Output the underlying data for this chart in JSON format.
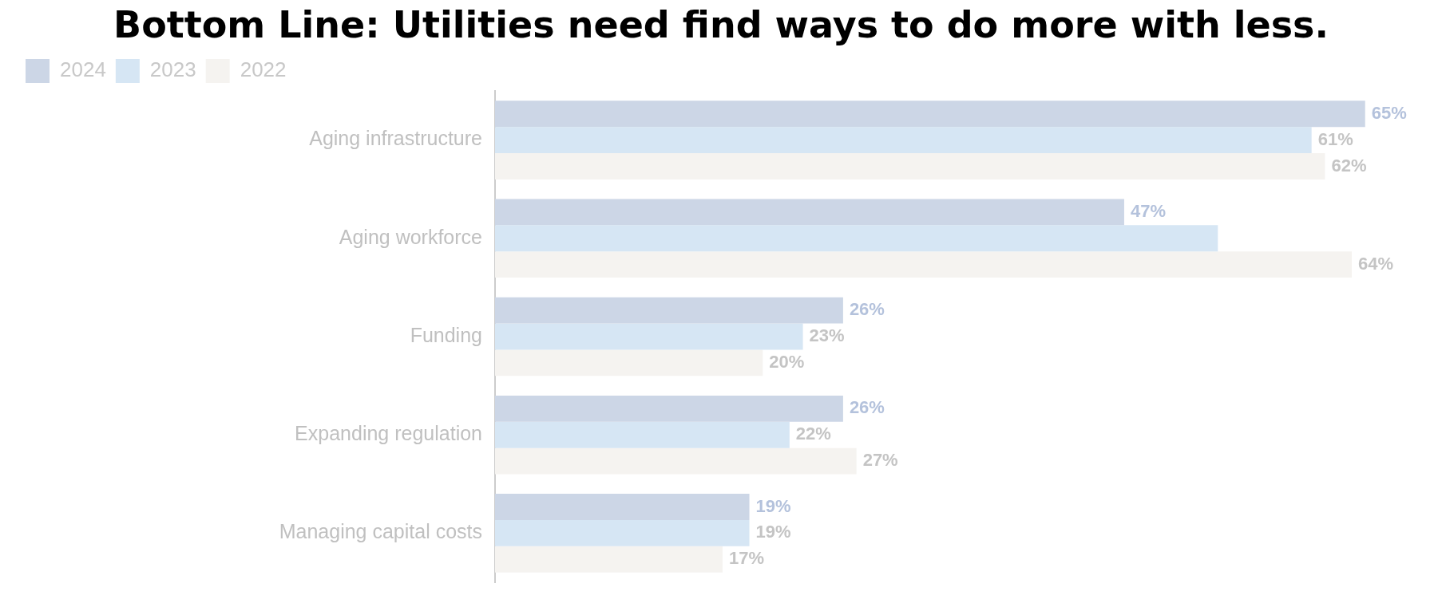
{
  "chart_data": {
    "type": "bar",
    "orientation": "horizontal",
    "title": "Bottom Line: Utilities need find ways to do more with less.",
    "categories": [
      "Aging infrastructure",
      "Aging workforce",
      "Funding",
      "Expanding regulation",
      "Managing capital costs"
    ],
    "series": [
      {
        "name": "2024",
        "color": "#ccd6e6",
        "values": [
          65,
          47,
          26,
          26,
          19
        ],
        "value_labels": [
          "65%",
          "47%",
          "26%",
          "26%",
          "19%"
        ]
      },
      {
        "name": "2023",
        "color": "#d6e6f4",
        "values": [
          61,
          54,
          23,
          22,
          19
        ],
        "value_labels": [
          "61%",
          null,
          "23%",
          "22%",
          "19%"
        ]
      },
      {
        "name": "2022",
        "color": "#f5f3f0",
        "values": [
          62,
          64,
          20,
          27,
          17
        ],
        "value_labels": [
          "62%",
          "64%",
          "20%",
          "27%",
          "17%"
        ]
      }
    ],
    "legend": "top left",
    "grid": false
  }
}
